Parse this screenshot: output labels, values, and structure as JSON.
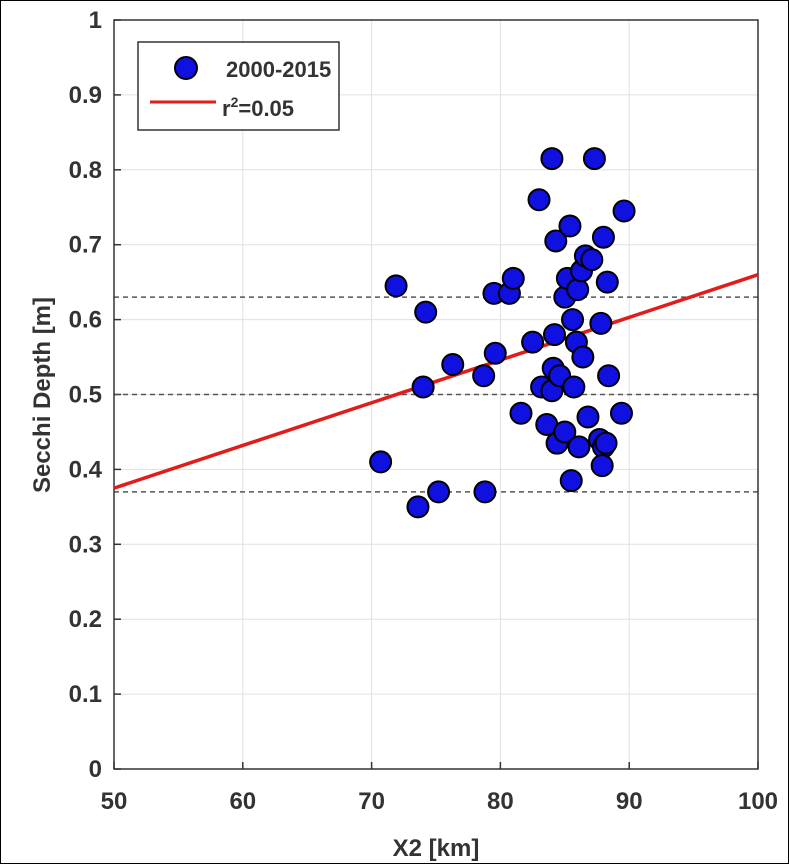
{
  "chart_data": {
    "type": "scatter",
    "xlabel": "X2 [km]",
    "ylabel": "Secchi Depth [m]",
    "xlim": [
      50,
      100
    ],
    "ylim": [
      0,
      1
    ],
    "x_ticks": [
      "50",
      "60",
      "70",
      "80",
      "90",
      "100"
    ],
    "y_ticks": [
      "0",
      "0.1",
      "0.2",
      "0.3",
      "0.4",
      "0.5",
      "0.6",
      "0.7",
      "0.8",
      "0.9",
      "1"
    ],
    "grid": true,
    "legend": {
      "placement": "top-left",
      "entries": [
        {
          "label": "2000-2015",
          "kind": "marker"
        },
        {
          "label_base": "r",
          "label_sup": "2",
          "label_tail": "=0.05",
          "kind": "line"
        }
      ]
    },
    "colors": {
      "marker_fill": "#1010e0",
      "marker_edge": "#000000",
      "fit_line": "#e21b1b",
      "ref_lines": "#555555",
      "grid": "#e0e0e0"
    },
    "reference_lines": [
      0.63,
      0.5,
      0.37
    ],
    "fit_line": {
      "x": [
        50,
        100
      ],
      "y": [
        0.375,
        0.66
      ]
    },
    "series": [
      {
        "name": "2000-2015",
        "points": [
          [
            70.7,
            0.41
          ],
          [
            71.9,
            0.645
          ],
          [
            73.6,
            0.35
          ],
          [
            74.0,
            0.51
          ],
          [
            74.2,
            0.61
          ],
          [
            75.2,
            0.37
          ],
          [
            76.3,
            0.54
          ],
          [
            78.7,
            0.525
          ],
          [
            78.8,
            0.37
          ],
          [
            79.5,
            0.635
          ],
          [
            79.6,
            0.555
          ],
          [
            80.7,
            0.635
          ],
          [
            81.0,
            0.655
          ],
          [
            81.6,
            0.475
          ],
          [
            82.5,
            0.57
          ],
          [
            83.2,
            0.51
          ],
          [
            83.0,
            0.76
          ],
          [
            83.6,
            0.46
          ],
          [
            84.0,
            0.815
          ],
          [
            84.3,
            0.705
          ],
          [
            84.2,
            0.58
          ],
          [
            84.1,
            0.535
          ],
          [
            84.0,
            0.505
          ],
          [
            84.4,
            0.435
          ],
          [
            84.6,
            0.525
          ],
          [
            85.0,
            0.63
          ],
          [
            85.2,
            0.655
          ],
          [
            85.4,
            0.725
          ],
          [
            85.0,
            0.45
          ],
          [
            85.5,
            0.385
          ],
          [
            85.7,
            0.51
          ],
          [
            85.6,
            0.6
          ],
          [
            85.9,
            0.57
          ],
          [
            86.0,
            0.64
          ],
          [
            86.3,
            0.665
          ],
          [
            86.4,
            0.55
          ],
          [
            86.6,
            0.685
          ],
          [
            86.1,
            0.43
          ],
          [
            86.8,
            0.47
          ],
          [
            87.1,
            0.68
          ],
          [
            87.3,
            0.815
          ],
          [
            87.7,
            0.44
          ],
          [
            87.8,
            0.595
          ],
          [
            88.0,
            0.71
          ],
          [
            88.0,
            0.43
          ],
          [
            87.9,
            0.405
          ],
          [
            88.3,
            0.65
          ],
          [
            88.4,
            0.525
          ],
          [
            89.4,
            0.475
          ],
          [
            89.6,
            0.745
          ],
          [
            88.2,
            0.435
          ]
        ]
      }
    ]
  }
}
